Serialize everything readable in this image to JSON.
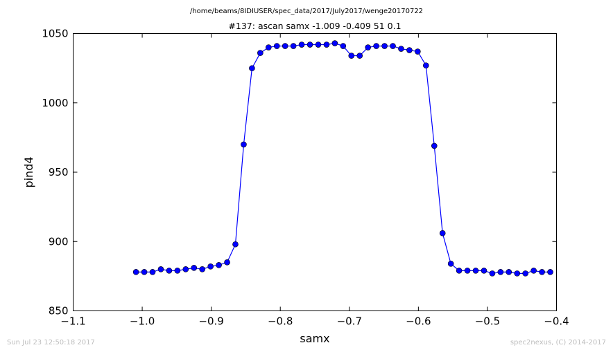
{
  "figure": {
    "suptitle": "/home/beams/8IDIUSER/spec_data/2017/July2017/wenge20170722",
    "timestamp": "Sun Jul 23 12:50:18 2017",
    "credit": "spec2nexus, (C) 2014-2017"
  },
  "chart_data": {
    "type": "line",
    "title": "#137: ascan  samx -1.009 -0.409  51 0.1",
    "xlabel": "samx",
    "ylabel": "pind4",
    "xlim": [
      -1.1,
      -0.4
    ],
    "ylim": [
      850,
      1050
    ],
    "xticks": [
      -1.1,
      -1.0,
      -0.9,
      -0.8,
      -0.7,
      -0.6,
      -0.5,
      -0.4
    ],
    "xtick_labels": [
      "−1.1",
      "−1.0",
      "−0.9",
      "−0.8",
      "−0.7",
      "−0.6",
      "−0.5",
      "−0.4"
    ],
    "yticks": [
      850,
      900,
      950,
      1000,
      1050
    ],
    "ytick_labels": [
      "850",
      "900",
      "950",
      "1000",
      "1050"
    ],
    "grid": false,
    "marker": "circle",
    "color": "#0000ff",
    "x": [
      -1.009,
      -0.997,
      -0.985,
      -0.973,
      -0.961,
      -0.949,
      -0.937,
      -0.925,
      -0.913,
      -0.901,
      -0.889,
      -0.877,
      -0.865,
      -0.853,
      -0.841,
      -0.829,
      -0.817,
      -0.805,
      -0.793,
      -0.781,
      -0.769,
      -0.757,
      -0.745,
      -0.733,
      -0.721,
      -0.709,
      -0.697,
      -0.685,
      -0.673,
      -0.661,
      -0.649,
      -0.637,
      -0.625,
      -0.613,
      -0.601,
      -0.589,
      -0.577,
      -0.565,
      -0.553,
      -0.541,
      -0.529,
      -0.517,
      -0.505,
      -0.493,
      -0.481,
      -0.469,
      -0.457,
      -0.445,
      -0.433,
      -0.421,
      -0.409
    ],
    "y": [
      878,
      878,
      878,
      880,
      879,
      879,
      880,
      881,
      880,
      882,
      883,
      885,
      898,
      970,
      1025,
      1036,
      1040,
      1041,
      1041,
      1041,
      1042,
      1042,
      1042,
      1042,
      1043,
      1041,
      1034,
      1034,
      1040,
      1041,
      1041,
      1041,
      1039,
      1038,
      1037,
      1027,
      969,
      906,
      884,
      879,
      879,
      879,
      879,
      877,
      878,
      878,
      877,
      877,
      879,
      878,
      878
    ]
  }
}
